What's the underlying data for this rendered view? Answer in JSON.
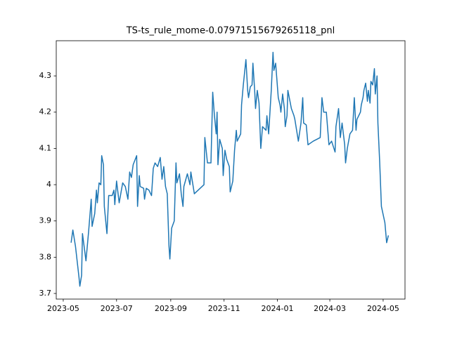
{
  "chart_data": {
    "type": "line",
    "title": "TS-ts_rule_mome-0.07971515679265118_pnl",
    "x": [
      19487,
      19489,
      19492,
      19496,
      19497,
      19499,
      19500,
      19504,
      19507,
      19510,
      19511,
      19514,
      19516,
      19517,
      19519,
      19521,
      19522,
      19524,
      19525,
      19528,
      19530,
      19534,
      19536,
      19537,
      19539,
      19542,
      19546,
      19549,
      19552,
      19554,
      19556,
      19558,
      19562,
      19563,
      19565,
      19566,
      19570,
      19571,
      19573,
      19576,
      19579,
      19581,
      19583,
      19586,
      19589,
      19591,
      19593,
      19595,
      19597,
      19599,
      19600,
      19602,
      19605,
      19607,
      19608,
      19611,
      19613,
      19615,
      19616,
      19620,
      19623,
      19624,
      19628,
      19639,
      19640,
      19643,
      19647,
      19649,
      19651,
      19653,
      19654,
      19655,
      19657,
      19660,
      19661,
      19663,
      19665,
      19668,
      19669,
      19672,
      19674,
      19676,
      19677,
      19681,
      19682,
      19684,
      19687,
      19689,
      19690,
      19692,
      19694,
      19695,
      19697,
      19698,
      19700,
      19702,
      19704,
      19706,
      19710,
      19711,
      19713,
      19716,
      19718,
      19719,
      19721,
      19724,
      19726,
      19727,
      19729,
      19731,
      19732,
      19734,
      19735,
      19739,
      19742,
      19743,
      19747,
      19750,
      19752,
      19753,
      19756,
      19758,
      19764,
      19772,
      19774,
      19776,
      19779,
      19781,
      19782,
      19785,
      19789,
      19790,
      19793,
      19795,
      19797,
      19800,
      19801,
      19803,
      19806,
      19809,
      19811,
      19813,
      19814,
      19818,
      19819,
      19821,
      19822,
      19824,
      19826,
      19827,
      19829,
      19830,
      19832,
      19834,
      19835,
      19837,
      19838,
      19840,
      19842,
      19846,
      19848,
      19850
    ],
    "series": [
      {
        "color": "#1f77b4",
        "values": [
          3.84,
          3.875,
          3.83,
          3.745,
          3.72,
          3.75,
          3.865,
          3.79,
          3.87,
          3.96,
          3.885,
          3.92,
          3.985,
          3.95,
          4.005,
          4.0,
          4.08,
          4.055,
          3.94,
          3.865,
          3.97,
          3.97,
          3.985,
          3.945,
          4.01,
          3.95,
          4.005,
          3.995,
          3.96,
          4.035,
          4.02,
          4.055,
          4.08,
          3.94,
          4.025,
          3.995,
          3.99,
          3.96,
          3.99,
          3.985,
          3.97,
          4.045,
          4.06,
          4.05,
          4.075,
          4.015,
          4.05,
          3.995,
          3.975,
          3.83,
          3.795,
          3.88,
          3.9,
          4.06,
          4.005,
          4.03,
          3.975,
          3.94,
          3.995,
          4.03,
          4.0,
          4.035,
          3.975,
          4.0,
          4.13,
          4.06,
          4.06,
          4.255,
          4.19,
          4.14,
          4.2,
          4.055,
          4.125,
          4.1,
          4.025,
          4.095,
          4.07,
          4.05,
          3.98,
          4.01,
          4.095,
          4.15,
          4.12,
          4.14,
          4.22,
          4.275,
          4.345,
          4.26,
          4.24,
          4.27,
          4.275,
          4.335,
          4.26,
          4.21,
          4.26,
          4.225,
          4.1,
          4.16,
          4.15,
          4.19,
          4.14,
          4.26,
          4.365,
          4.315,
          4.335,
          4.24,
          4.22,
          4.2,
          4.25,
          4.21,
          4.16,
          4.19,
          4.26,
          4.21,
          4.19,
          4.18,
          4.12,
          4.17,
          4.24,
          4.17,
          4.165,
          4.11,
          4.12,
          4.13,
          4.24,
          4.2,
          4.2,
          4.14,
          4.11,
          4.12,
          4.09,
          4.16,
          4.21,
          4.13,
          4.17,
          4.11,
          4.06,
          4.1,
          4.14,
          4.15,
          4.24,
          4.15,
          4.18,
          4.2,
          4.22,
          4.24,
          4.26,
          4.28,
          4.23,
          4.26,
          4.225,
          4.285,
          4.275,
          4.32,
          4.25,
          4.3,
          4.17,
          4.065,
          3.94,
          3.895,
          3.84,
          3.86
        ]
      }
    ],
    "xlim": [
      19470,
      19869
    ],
    "xticks": [
      {
        "value": 19478,
        "label": "2023-05"
      },
      {
        "value": 19539,
        "label": "2023-07"
      },
      {
        "value": 19601,
        "label": "2023-09"
      },
      {
        "value": 19662,
        "label": "2023-11"
      },
      {
        "value": 19723,
        "label": "2024-01"
      },
      {
        "value": 19783,
        "label": "2024-03"
      },
      {
        "value": 19844,
        "label": "2024-05"
      }
    ],
    "ylim": [
      3.6845,
      4.397
    ],
    "yticks": [
      3.7,
      3.8,
      3.9,
      4.0,
      4.1,
      4.2,
      4.3
    ],
    "grid": false
  }
}
